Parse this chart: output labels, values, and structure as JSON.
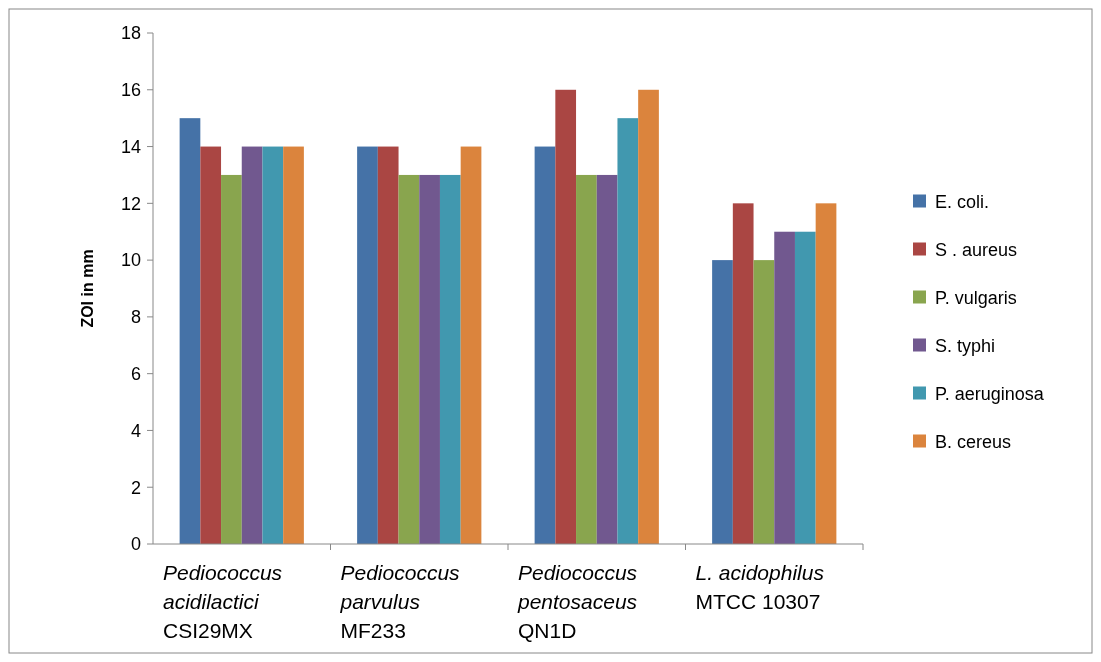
{
  "chart_data": {
    "type": "bar",
    "ylabel": "ZOI in mm",
    "categories": [
      "Pediococcus\nacidilactici\nCSI29MX",
      "Pediococcus\nparvulus\nMF233",
      "Pediococcus\npentosaceus\nQN1D",
      "L. acidophilus\nMTCC 10307"
    ],
    "series": [
      {
        "name": "E. coli.",
        "color": "#4572a7",
        "values": [
          15,
          14,
          14,
          10
        ]
      },
      {
        "name": "S . aureus",
        "color": "#aa4643",
        "values": [
          14,
          14,
          16,
          12
        ]
      },
      {
        "name": "P. vulgaris",
        "color": "#89a54e",
        "values": [
          13,
          13,
          13,
          10
        ]
      },
      {
        "name": "S. typhi",
        "color": "#71588f",
        "values": [
          14,
          13,
          13,
          11
        ]
      },
      {
        "name": "P. aeruginosa",
        "color": "#4198af",
        "values": [
          14,
          13,
          15,
          11
        ]
      },
      {
        "name": "B. cereus",
        "color": "#db843d",
        "values": [
          14,
          14,
          16,
          12
        ]
      }
    ],
    "ylim": [
      0,
      18
    ],
    "yticks": [
      0,
      2,
      4,
      6,
      8,
      10,
      12,
      14,
      16,
      18
    ],
    "grid": false,
    "legend": "right"
  }
}
